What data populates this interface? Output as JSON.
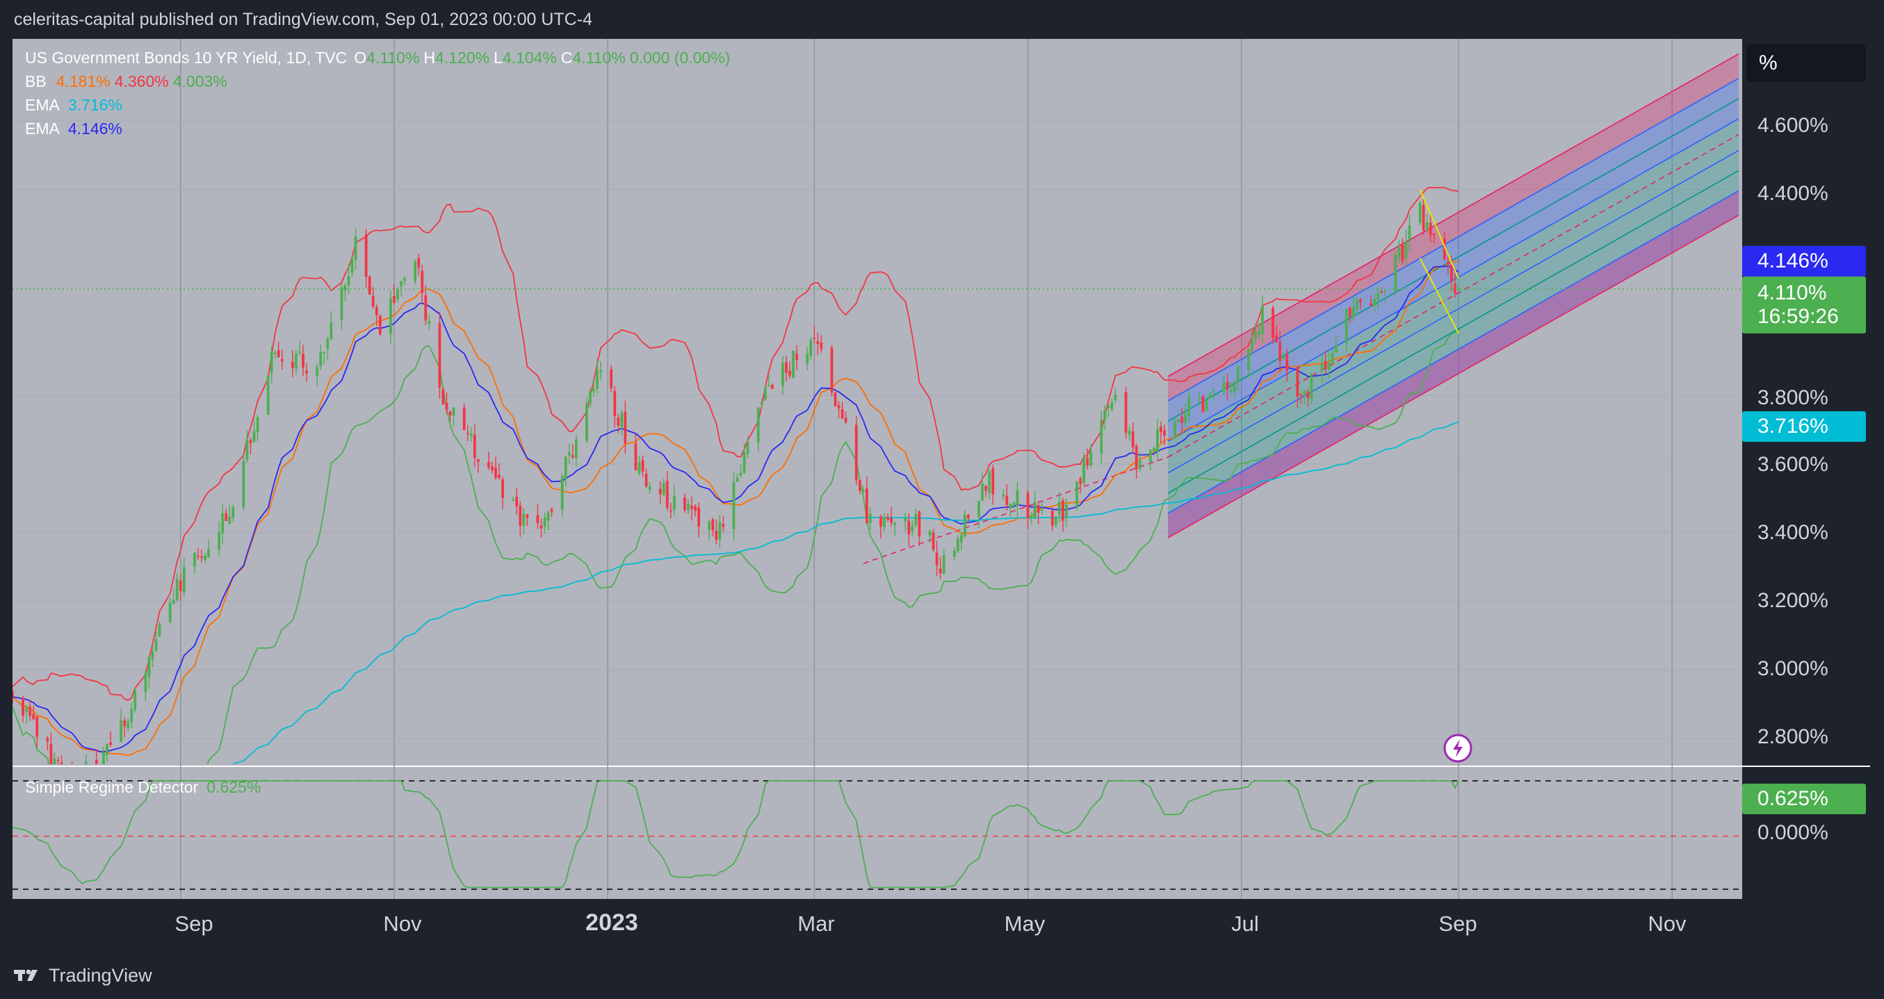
{
  "header": {
    "published_line": "celeritas-capital published on TradingView.com, Sep 01, 2023 00:00 UTC-4"
  },
  "legend": {
    "symbol": "US Government Bonds 10 YR Yield, 1D, TVC",
    "o_label": "O",
    "o_value": "4.110%",
    "h_label": "H",
    "h_value": "4.120%",
    "l_label": "L",
    "l_value": "4.104%",
    "c_label": "C",
    "c_value": "4.110%",
    "change": "0.000 (0.00%)",
    "bb_label": "BB",
    "bb_basis": "4.181%",
    "bb_upper": "4.360%",
    "bb_lower": "4.003%",
    "ema1_label": "EMA",
    "ema1_value": "3.716%",
    "ema2_label": "EMA",
    "ema2_value": "4.146%",
    "indicator_label": "Simple Regime Detector",
    "indicator_value": "0.625%"
  },
  "price_scale": {
    "unit_button": "%",
    "ticks": [
      "4.600%",
      "4.400%",
      "3.800%",
      "3.600%",
      "3.400%",
      "3.200%",
      "3.000%",
      "2.800%"
    ],
    "tags": {
      "ema_fast": "4.146%",
      "last_price": "4.110%",
      "countdown": "16:59:26",
      "ema_slow": "3.716%",
      "indicator": "0.625%",
      "indicator_zero": "0.000%"
    }
  },
  "time_scale": {
    "labels": [
      "Sep",
      "Nov",
      "2023",
      "Mar",
      "May",
      "Jul",
      "Sep",
      "Nov"
    ]
  },
  "footer": {
    "brand": "TradingView"
  },
  "colors": {
    "background": "#b2b5be",
    "up": "#4caf50",
    "down": "#f23645",
    "bb_upper": "#f23645",
    "bb_lower": "#4caf50",
    "bb_basis": "#ff6d00",
    "ema_fast": "#2929f2",
    "ema_slow": "#00bcd4",
    "last_price": "#4caf50",
    "regime": "#4caf50"
  },
  "chart_data": {
    "type": "candlestick",
    "title": "US Government Bonds 10 YR Yield, 1D, TVC",
    "x_range": [
      "2022-07-15",
      "2023-11-20"
    ],
    "ylim": [
      2.72,
      4.74
    ],
    "last": {
      "open": 4.11,
      "high": 4.12,
      "low": 4.104,
      "close": 4.11,
      "date": "2023-09-01"
    },
    "anchors": [
      {
        "date": "2022-07-15",
        "close": 2.93
      },
      {
        "date": "2022-08-01",
        "close": 2.65
      },
      {
        "date": "2022-08-15",
        "close": 2.82
      },
      {
        "date": "2022-09-01",
        "close": 3.26
      },
      {
        "date": "2022-09-15",
        "close": 3.45
      },
      {
        "date": "2022-09-27",
        "close": 3.93
      },
      {
        "date": "2022-10-10",
        "close": 3.88
      },
      {
        "date": "2022-10-21",
        "close": 4.24
      },
      {
        "date": "2022-10-28",
        "close": 4.0
      },
      {
        "date": "2022-11-07",
        "close": 4.21
      },
      {
        "date": "2022-11-15",
        "close": 3.78
      },
      {
        "date": "2022-12-01",
        "close": 3.55
      },
      {
        "date": "2022-12-07",
        "close": 3.42
      },
      {
        "date": "2022-12-15",
        "close": 3.45
      },
      {
        "date": "2022-12-30",
        "close": 3.88
      },
      {
        "date": "2023-01-10",
        "close": 3.58
      },
      {
        "date": "2023-01-20",
        "close": 3.48
      },
      {
        "date": "2023-02-01",
        "close": 3.39
      },
      {
        "date": "2023-02-15",
        "close": 3.8
      },
      {
        "date": "2023-03-01",
        "close": 3.98
      },
      {
        "date": "2023-03-10",
        "close": 3.7
      },
      {
        "date": "2023-03-17",
        "close": 3.42
      },
      {
        "date": "2023-04-03",
        "close": 3.42
      },
      {
        "date": "2023-04-06",
        "close": 3.29
      },
      {
        "date": "2023-04-20",
        "close": 3.55
      },
      {
        "date": "2023-05-05",
        "close": 3.44
      },
      {
        "date": "2023-05-12",
        "close": 3.46
      },
      {
        "date": "2023-05-26",
        "close": 3.81
      },
      {
        "date": "2023-06-01",
        "close": 3.61
      },
      {
        "date": "2023-06-15",
        "close": 3.76
      },
      {
        "date": "2023-06-29",
        "close": 3.82
      },
      {
        "date": "2023-07-07",
        "close": 4.05
      },
      {
        "date": "2023-07-18",
        "close": 3.78
      },
      {
        "date": "2023-08-01",
        "close": 4.04
      },
      {
        "date": "2023-08-10",
        "close": 4.1
      },
      {
        "date": "2023-08-21",
        "close": 4.33
      },
      {
        "date": "2023-09-01",
        "close": 4.11
      }
    ],
    "indicators": {
      "bb": {
        "basis": 4.181,
        "upper": 4.36,
        "lower": 4.003
      },
      "ema_fast": 4.146,
      "ema_slow": 3.716,
      "regime": {
        "name": "Simple Regime Detector",
        "last": 0.625,
        "ylim": [
          -0.6,
          0.625
        ]
      }
    },
    "regression_channel": {
      "start_date": "2023-06-10",
      "end_date": "2023-11-20"
    },
    "grid": true,
    "y_ticks": [
      2.8,
      3.0,
      3.2,
      3.4,
      3.6,
      3.8,
      4.4,
      4.6
    ]
  }
}
